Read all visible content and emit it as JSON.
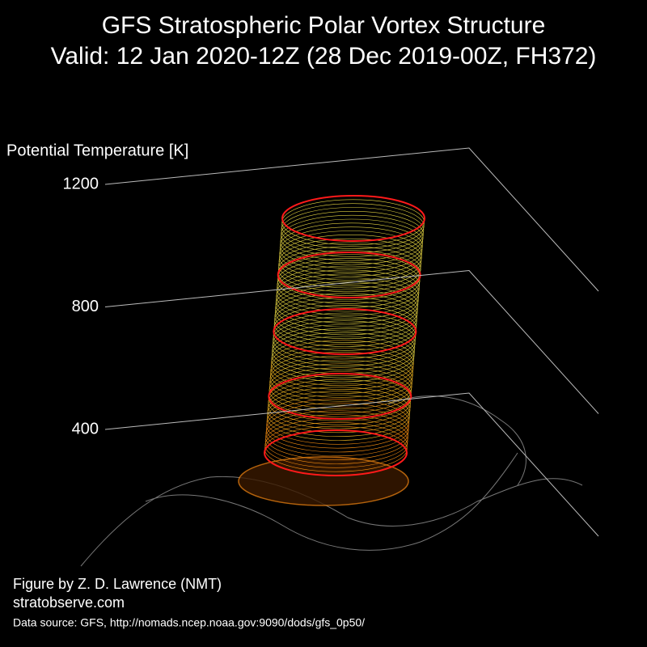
{
  "chart_data": {
    "type": "surface3d",
    "title": "GFS Stratospheric Polar Vortex Structure",
    "subtitle": "Valid: 12 Jan 2020-12Z  (28 Dec 2019-00Z, FH372)",
    "zlabel": "Potential Temperature [K]",
    "zlim": [
      400,
      1200
    ],
    "zticks": [
      400,
      800,
      1200
    ],
    "credit": "Figure by Z. D. Lawrence (NMT)",
    "website": "stratobserve.com",
    "source": "Data source: GFS, http://nomads.ncep.noaa.gov:9090/dods/gfs_0p50/"
  }
}
